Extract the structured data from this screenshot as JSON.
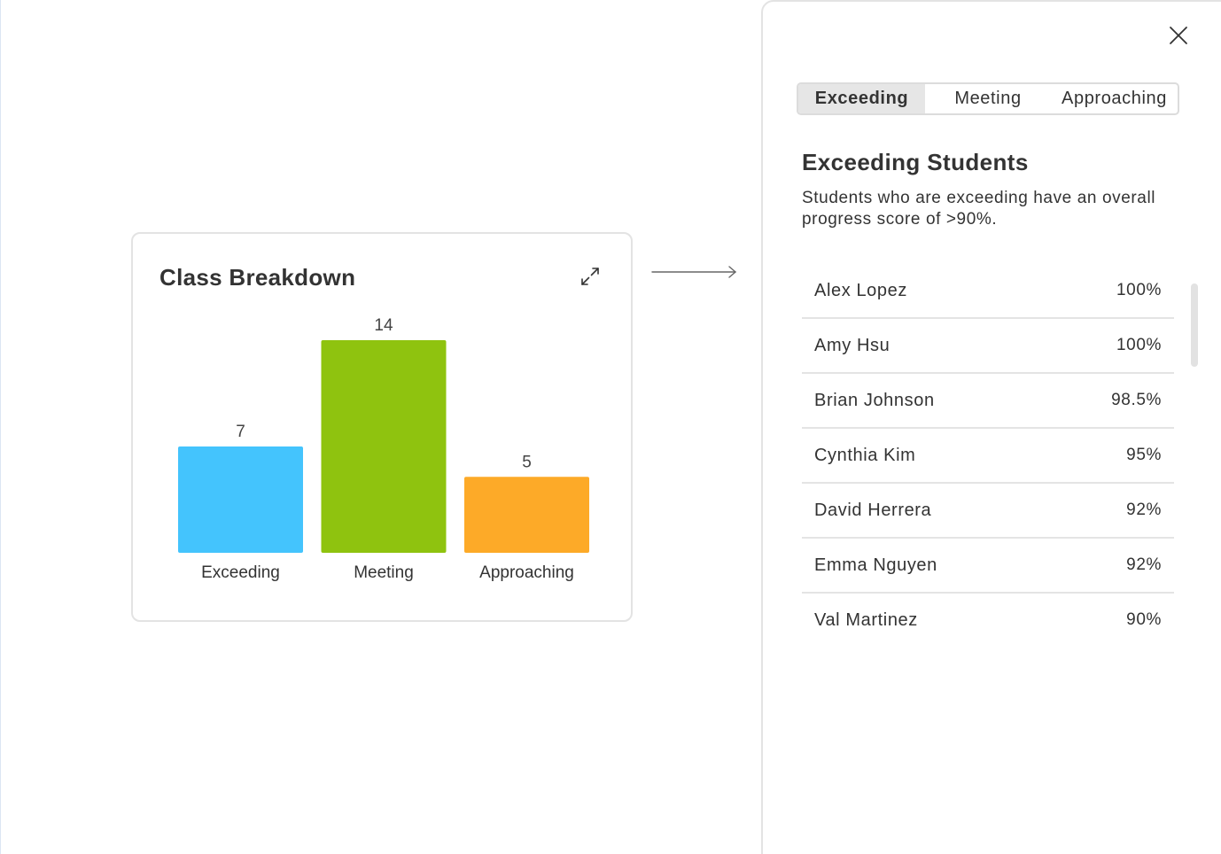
{
  "card": {
    "title": "Class Breakdown",
    "expand_icon": "expand-arrows-icon"
  },
  "chart_data": {
    "type": "bar",
    "categories": [
      "Exceeding",
      "Meeting",
      "Approaching"
    ],
    "values": [
      7,
      14,
      5
    ],
    "colors": [
      "#44c4fd",
      "#8fc30f",
      "#fdaa28"
    ],
    "ylim": [
      0,
      14
    ],
    "title": "",
    "xlabel": "",
    "ylabel": "",
    "data_labels": true,
    "grid": false
  },
  "connector_icon": "long-arrow-right-icon",
  "panel": {
    "close_icon": "close-icon",
    "tabs": [
      {
        "label": "Exceeding",
        "selected": true
      },
      {
        "label": "Meeting",
        "selected": false
      },
      {
        "label": "Approaching",
        "selected": false
      }
    ],
    "title": "Exceeding Students",
    "description": "Students who are exceeding have an overall progress score of >90%.",
    "students": [
      {
        "name": "Alex Lopez",
        "score": "100%"
      },
      {
        "name": "Amy Hsu",
        "score": "100%"
      },
      {
        "name": "Brian Johnson",
        "score": "98.5%"
      },
      {
        "name": "Cynthia Kim",
        "score": "95%"
      },
      {
        "name": "David Herrera",
        "score": "92%"
      },
      {
        "name": "Emma Nguyen",
        "score": "92%"
      },
      {
        "name": "Val Martinez",
        "score": "90%"
      }
    ]
  }
}
